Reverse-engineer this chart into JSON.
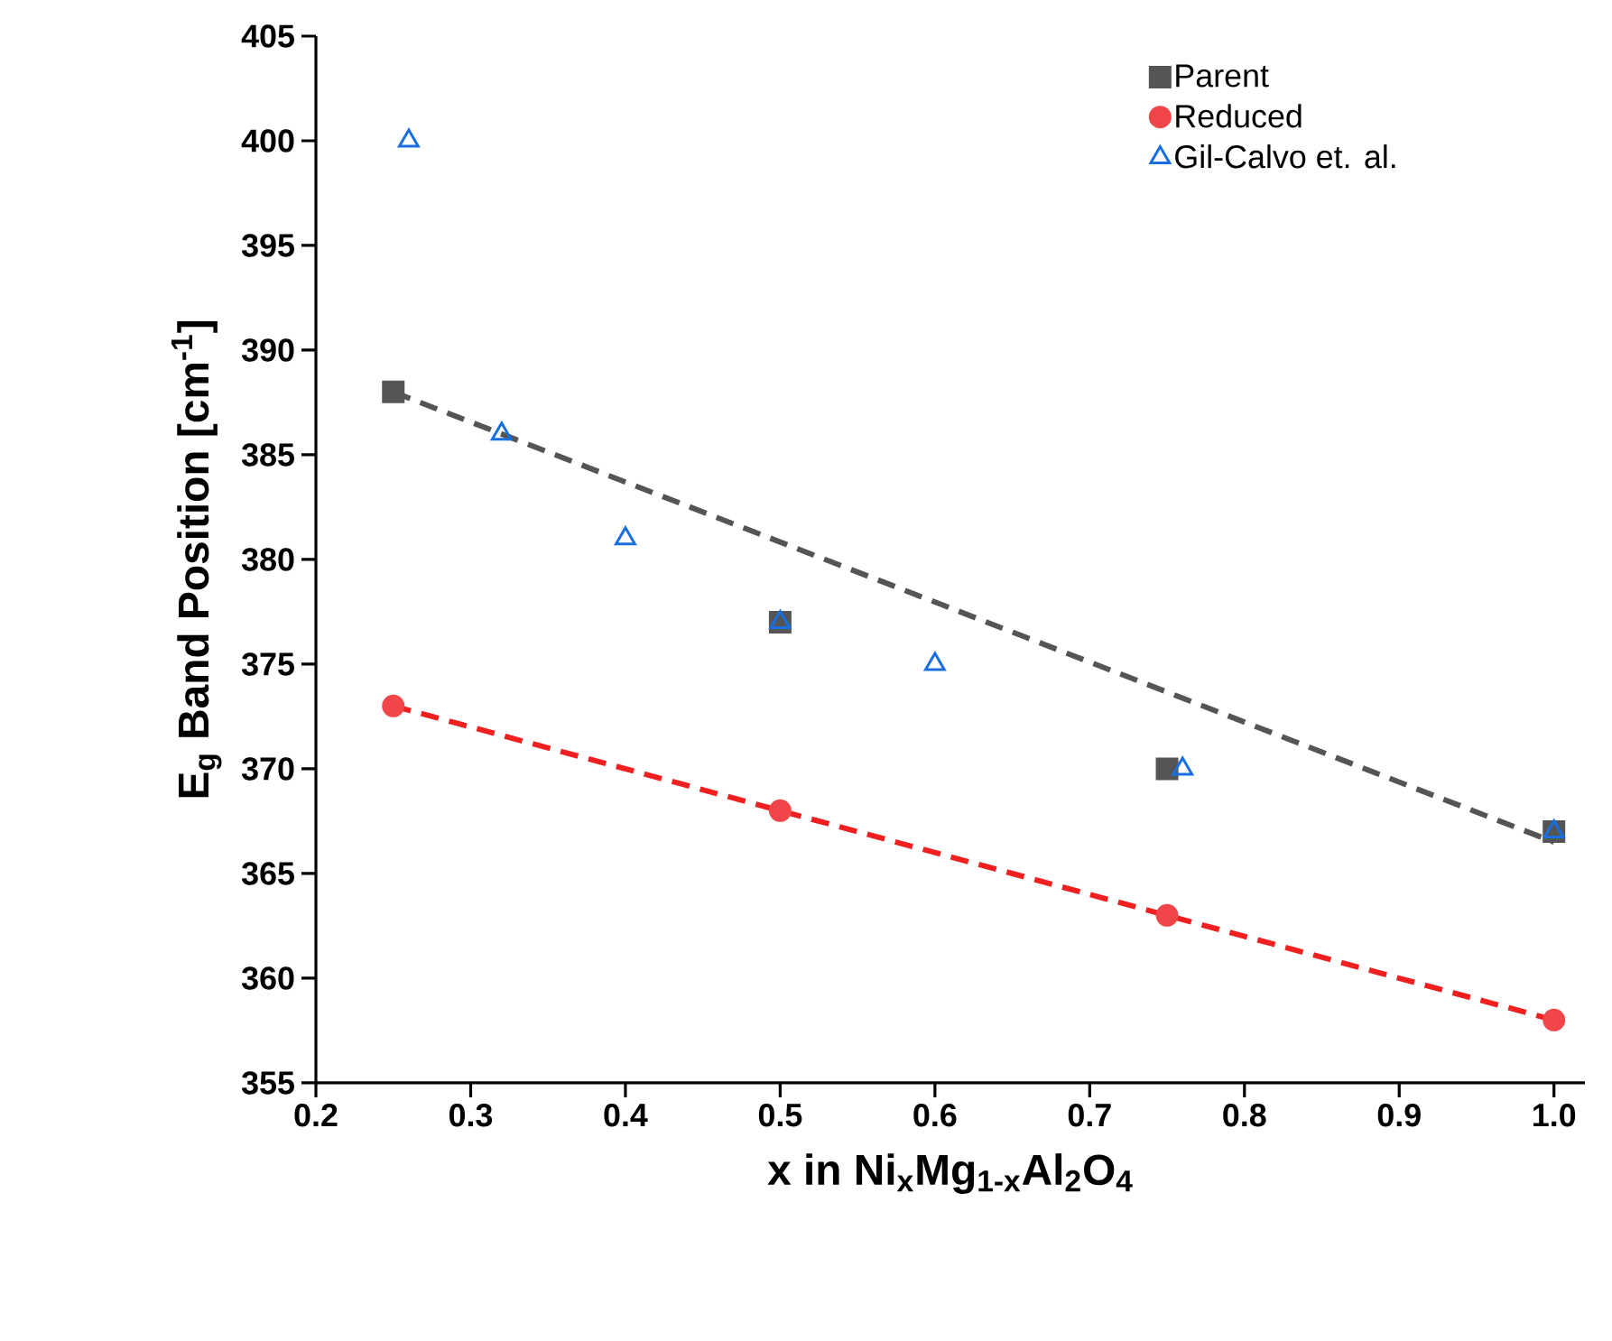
{
  "chart_data": {
    "type": "scatter",
    "xlabel": "x in Ni$_{x}$Mg$_{1-x}$Al$_{2}$O$_{4}$",
    "ylabel": "E$_{g}$ Band Position [cm$^{-1}$]",
    "xlim": [
      0.2,
      1.02
    ],
    "ylim": [
      355,
      405
    ],
    "xticks": [
      0.2,
      0.3,
      0.4,
      0.5,
      0.6,
      0.7,
      0.8,
      0.9,
      {
        "value": 1.0,
        "label": "1.0"
      }
    ],
    "yticks": [
      355,
      360,
      365,
      370,
      375,
      380,
      385,
      390,
      395,
      400,
      405
    ],
    "grid": false,
    "legend": "top right",
    "series": [
      {
        "name": "Parent",
        "color": "#555555",
        "marker": "square",
        "x": [
          0.25,
          0.5,
          0.75,
          1.0
        ],
        "values": [
          388,
          377,
          370,
          367
        ]
      },
      {
        "name": "Reduced",
        "color": "#f0464a",
        "marker": "circle",
        "x": [
          0.25,
          0.5,
          0.75,
          1.0
        ],
        "values": [
          373,
          368,
          363,
          358
        ]
      },
      {
        "name": "Gil-Calvo et. al.",
        "color": "#1a6fe0",
        "marker": "triangle",
        "x": [
          0.26,
          0.32,
          0.4,
          0.5,
          0.6,
          0.76,
          1.0
        ],
        "values": [
          400,
          386,
          381,
          377,
          375,
          370,
          367
        ]
      },
      {
        "type": "line",
        "color": "#555555",
        "marker": "none",
        "line_style": "dashed",
        "x": [
          0.25,
          1.0
        ],
        "values": [
          388,
          366.5
        ]
      },
      {
        "type": "line",
        "color": "#f02020",
        "marker": "none",
        "line_style": "dashed",
        "x": [
          0.25,
          1.0
        ],
        "values": [
          373,
          358
        ]
      }
    ]
  }
}
